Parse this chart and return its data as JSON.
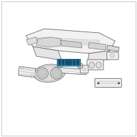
{
  "bg_color": "#ffffff",
  "border_color": "#d0d0d0",
  "line_color": "#666666",
  "line_color_light": "#999999",
  "highlight_color": "#1a6e9a",
  "highlight_fill": "#3a9fc8",
  "highlight_detail": "#1a5070"
}
